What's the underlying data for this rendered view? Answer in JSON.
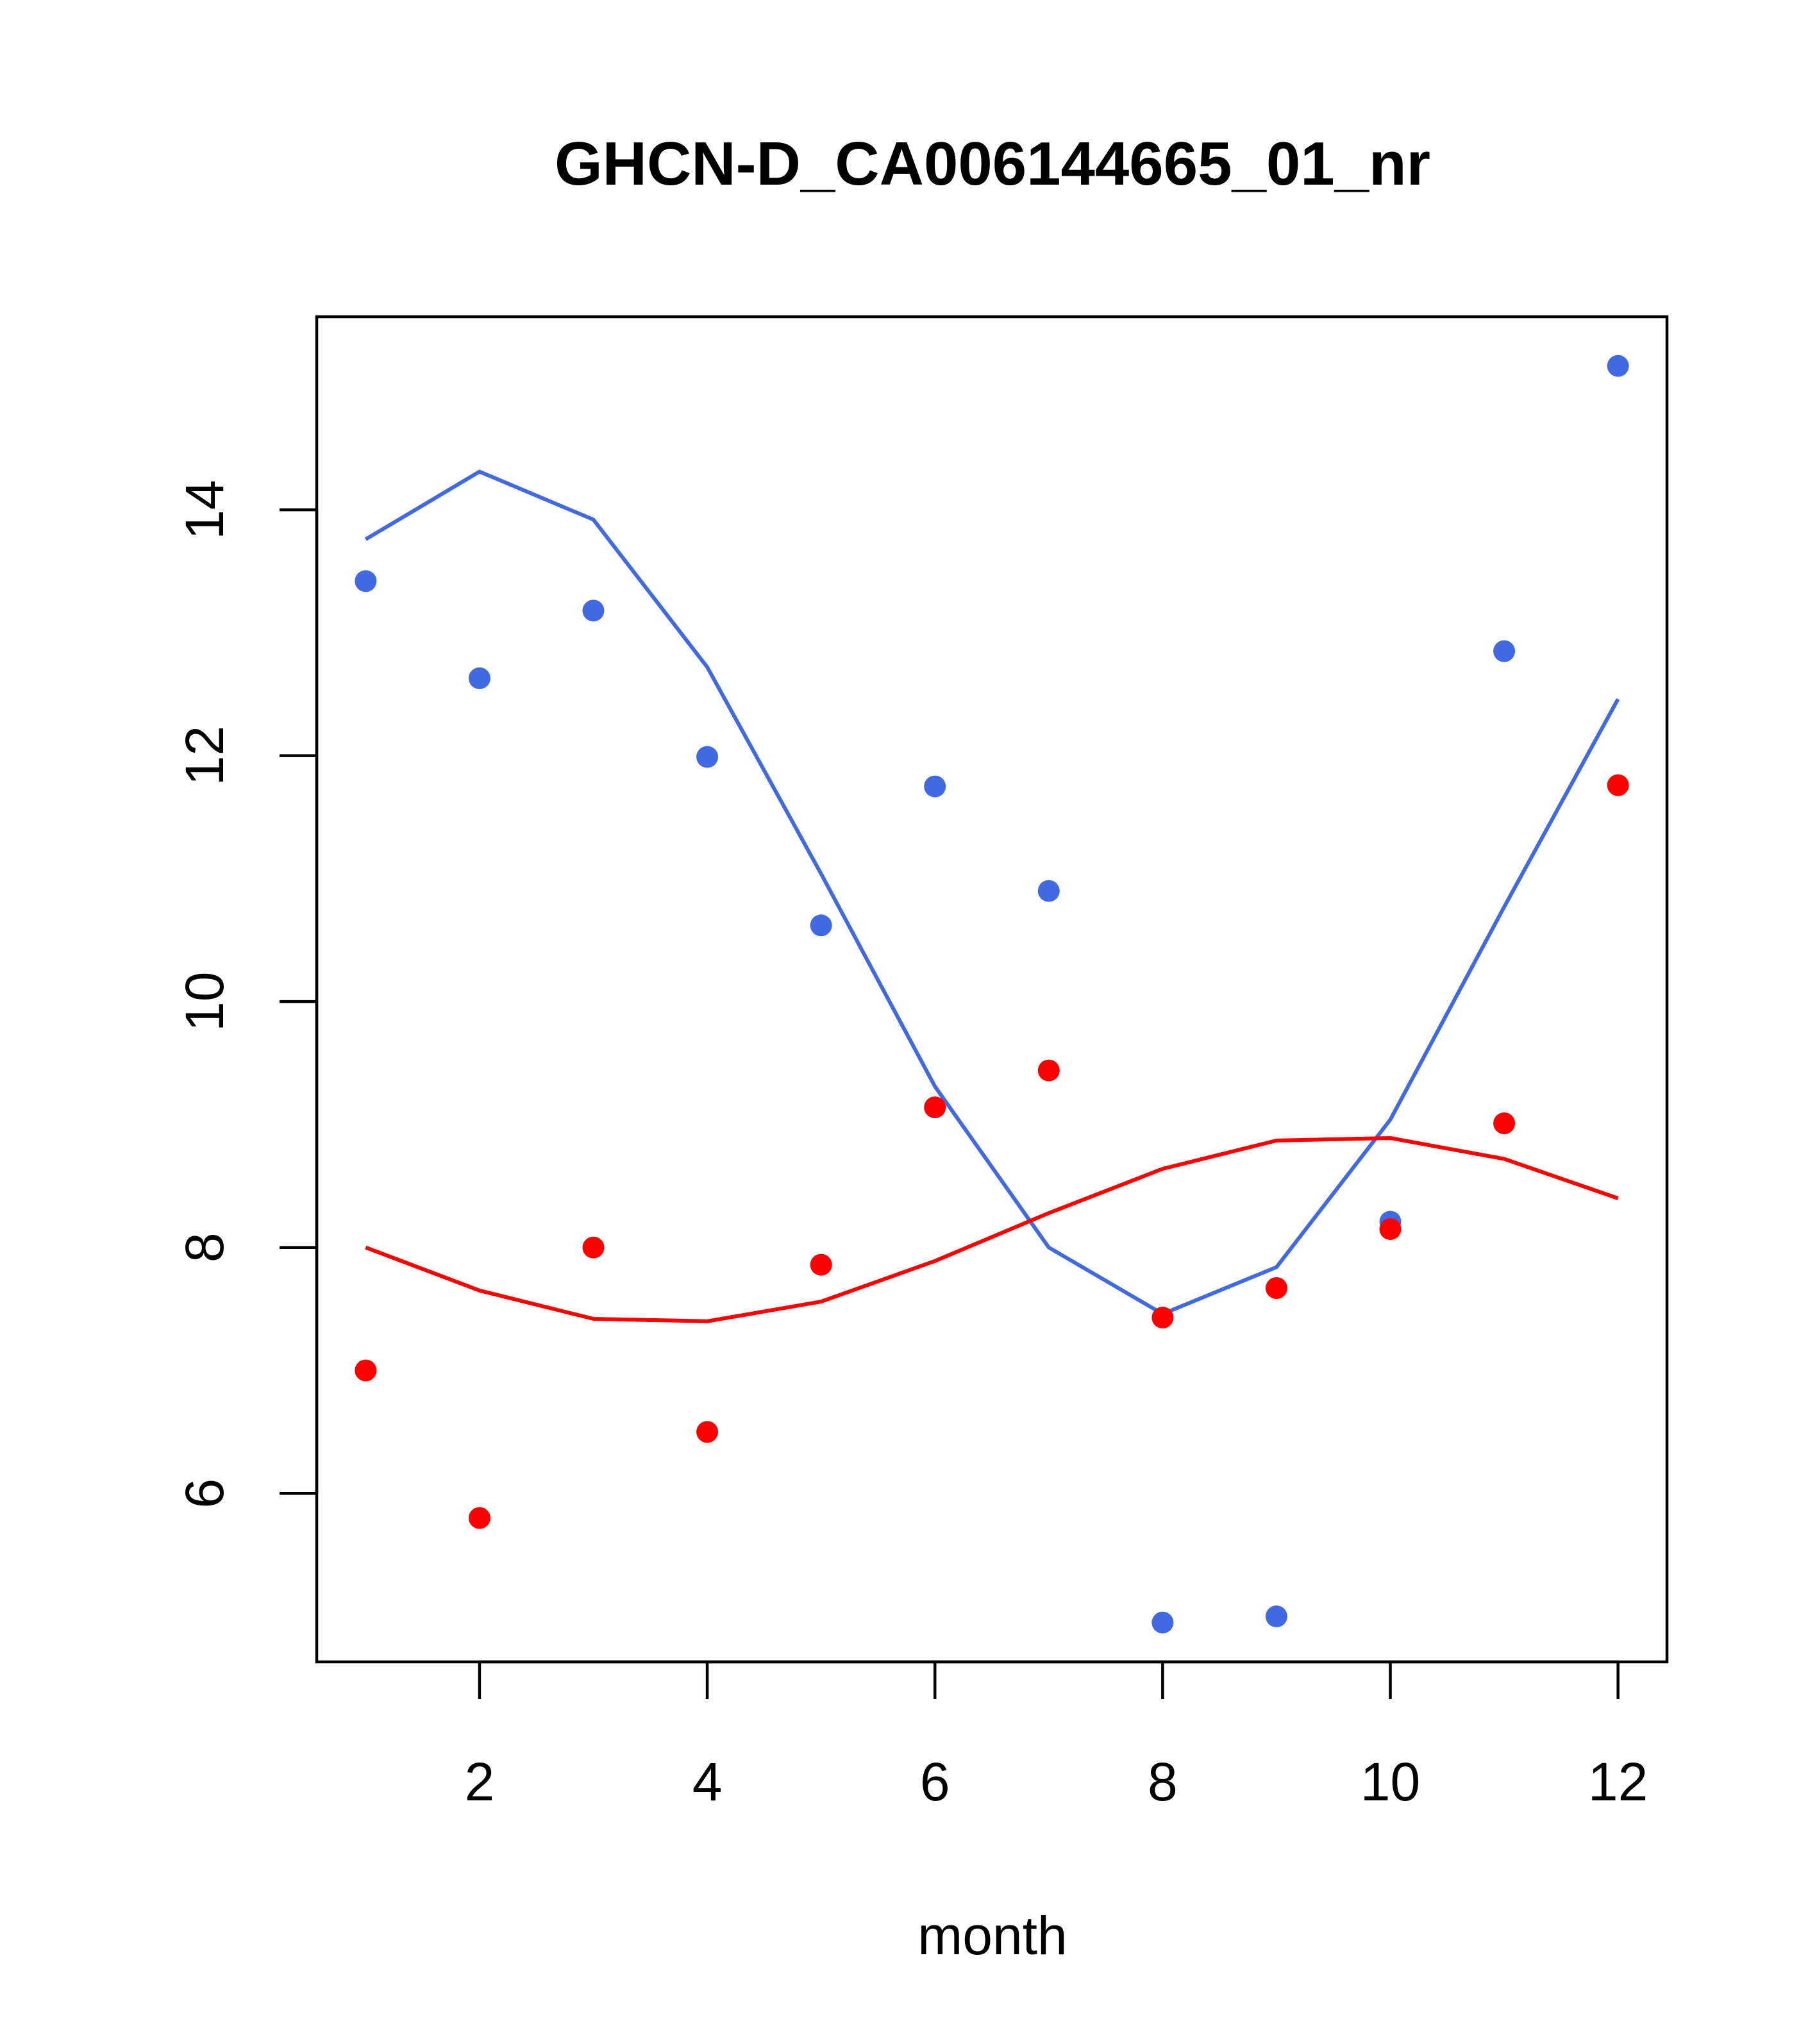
{
  "chart_data": {
    "type": "scatter",
    "title": "GHCN-D_CA006144665_01_nr",
    "xlabel": "month",
    "ylabel": "",
    "xlim": [
      0.57,
      12.43
    ],
    "ylim": [
      4.63,
      15.57
    ],
    "xticks": [
      2,
      4,
      6,
      8,
      10,
      12
    ],
    "yticks": [
      6,
      8,
      10,
      12,
      14
    ],
    "grid": false,
    "series": [
      {
        "color": "#4169E1",
        "points": {
          "x": [
            1,
            2,
            3,
            4,
            5,
            6,
            7,
            8,
            9,
            10,
            11,
            12
          ],
          "y": [
            13.42,
            12.63,
            13.18,
            11.99,
            10.62,
            11.75,
            10.9,
            4.95,
            5.0,
            8.21,
            12.85,
            15.17
          ]
        },
        "line": {
          "x": [
            1,
            2,
            3,
            4,
            5,
            6,
            7,
            8,
            9,
            10,
            11,
            12
          ],
          "y": [
            13.76,
            14.31,
            13.92,
            12.72,
            11.04,
            9.31,
            8.0,
            7.46,
            7.84,
            9.04,
            10.77,
            12.46
          ]
        }
      },
      {
        "color": "#FF0000",
        "points": {
          "x": [
            1,
            2,
            3,
            4,
            5,
            6,
            7,
            8,
            9,
            10,
            11,
            12
          ],
          "y": [
            7.0,
            5.8,
            8.0,
            6.5,
            7.86,
            9.14,
            9.44,
            7.43,
            7.67,
            8.15,
            9.01,
            11.76
          ]
        },
        "line": {
          "x": [
            1,
            2,
            3,
            4,
            5,
            6,
            7,
            8,
            9,
            10,
            11,
            12
          ],
          "y": [
            8.0,
            7.65,
            7.42,
            7.4,
            7.56,
            7.89,
            8.28,
            8.64,
            8.87,
            8.89,
            8.72,
            8.4
          ]
        }
      }
    ]
  }
}
